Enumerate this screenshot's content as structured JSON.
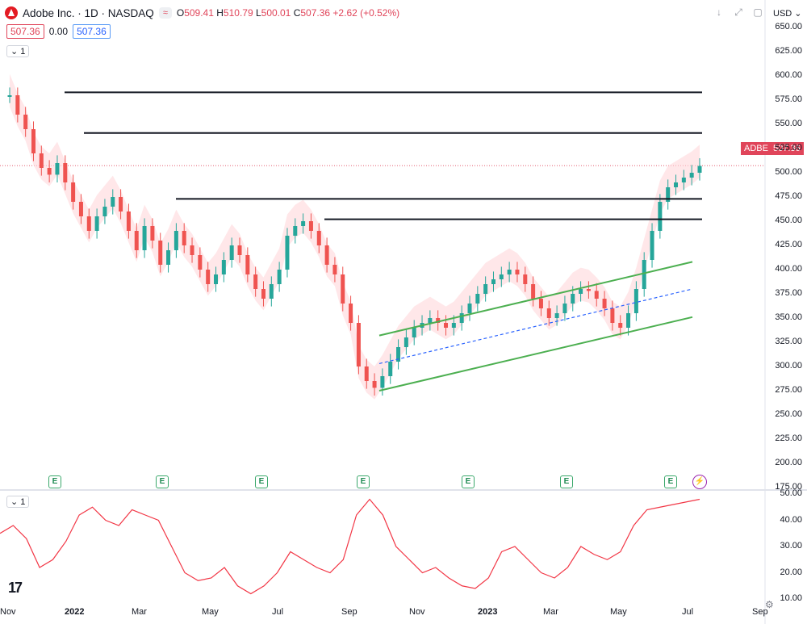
{
  "symbol_bar": {
    "title": "Adobe Inc. · 1D · NASDAQ",
    "pill_text": "≈",
    "open_label": "O",
    "open": "509.41",
    "high_label": "H",
    "high": "510.79",
    "low_label": "L",
    "low": "500.01",
    "close_label": "C",
    "close": "507.36",
    "change": "+2.62 (+0.52%)",
    "box_left": "507.36",
    "box_mid": "0.00",
    "box_right": "507.36",
    "indicator_label": "1",
    "sub_indicator_label": "1"
  },
  "toolbar": {
    "currency": "USD",
    "down_icon": "arrow-down-icon",
    "expand_icon": "expand-icon",
    "square_icon": "square-icon"
  },
  "price_tag": {
    "symbol": "ADBE",
    "price": "507.36"
  },
  "colors": {
    "accent_red": "#e0455a",
    "candle_up": "#26a69a",
    "candle_down": "#ef5350",
    "channel": "#4caf50",
    "mid_line": "#2962ff",
    "osc": "#f23645",
    "cloud_red": "#ffd7da",
    "cloud_green": "#dff3df"
  },
  "chart_data": {
    "type": "line",
    "y_labels": [
      "650.00",
      "625.00",
      "600.00",
      "575.00",
      "550.00",
      "525.00",
      "500.00",
      "475.00",
      "450.00",
      "425.00",
      "400.00",
      "375.00",
      "350.00",
      "325.00",
      "300.00",
      "275.00",
      "250.00",
      "225.00",
      "200.00",
      "175.00"
    ],
    "ylim": [
      175,
      650
    ],
    "osc_labels": [
      "50.00",
      "40.00",
      "30.00",
      "20.00",
      "10.00"
    ],
    "osc_ylim": [
      10,
      50
    ],
    "x_labels": [
      "Nov",
      "2022",
      "Mar",
      "May",
      "Jul",
      "Sep",
      "Nov",
      "2023",
      "Mar",
      "May",
      "Jul",
      "Sep"
    ],
    "earnings_marker": "E",
    "earnings_count": 7,
    "series": [
      {
        "values": [
          580,
          560,
          545,
          520,
          505,
          498,
          510,
          490,
          470,
          455,
          440,
          455,
          465,
          475,
          460,
          440,
          420,
          445,
          430,
          405,
          420,
          440,
          425,
          415,
          400,
          385,
          395,
          410,
          425,
          415,
          395,
          380,
          370,
          385,
          400,
          435,
          445,
          450,
          440,
          425,
          405,
          395,
          365,
          345,
          300,
          285,
          278,
          290,
          305,
          320,
          330,
          340,
          345,
          350,
          345,
          340,
          345,
          355,
          365,
          375,
          385,
          390,
          395,
          400,
          395,
          385,
          370,
          360,
          350,
          355,
          365,
          375,
          380,
          378,
          370,
          360,
          345,
          340,
          355,
          380,
          410,
          440,
          470,
          485,
          490,
          495,
          500,
          507
        ]
      }
    ],
    "resistance_levels": [
      583,
      541,
      473,
      452
    ],
    "osc": {
      "values": [
        35,
        38,
        33,
        22,
        25,
        32,
        42,
        45,
        40,
        38,
        44,
        42,
        40,
        30,
        20,
        17,
        18,
        22,
        15,
        12,
        15,
        20,
        28,
        25,
        22,
        20,
        25,
        42,
        48,
        42,
        30,
        25,
        20,
        22,
        18,
        15,
        14,
        18,
        28,
        30,
        25,
        20,
        18,
        22,
        30,
        27,
        25,
        28,
        38,
        44,
        45,
        46,
        47,
        48
      ]
    }
  }
}
